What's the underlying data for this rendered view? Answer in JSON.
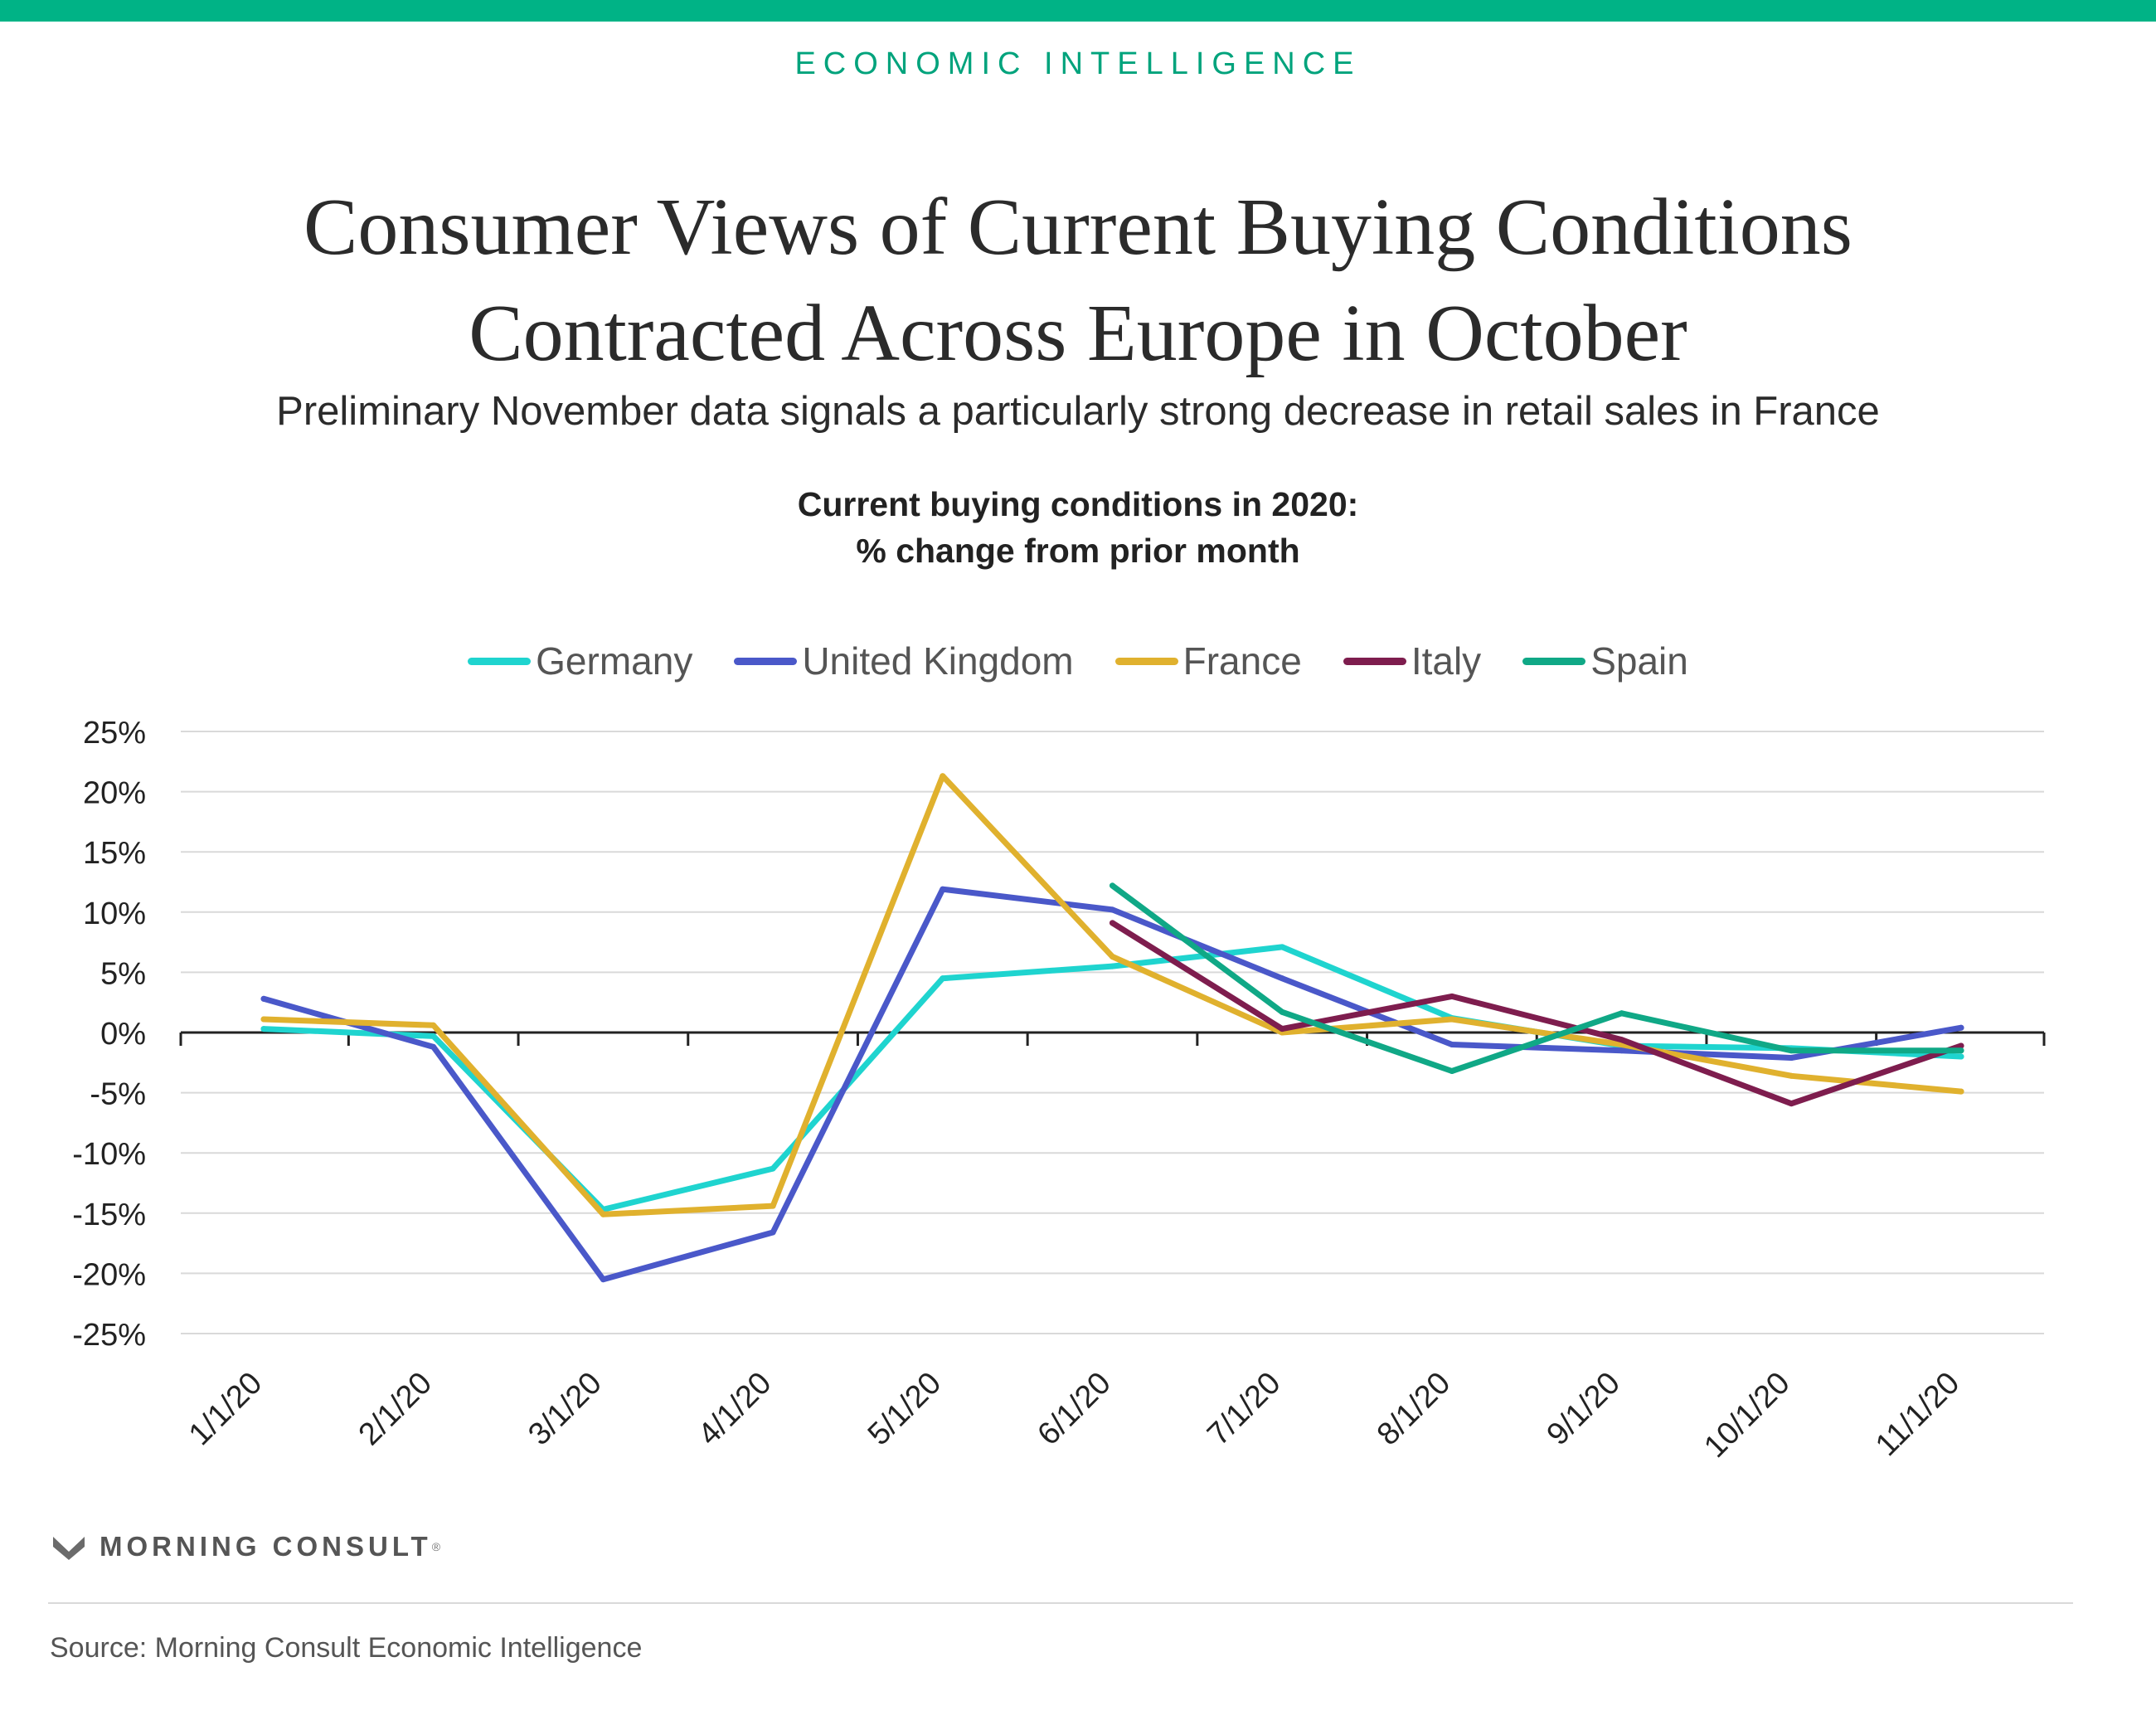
{
  "header": {
    "eyebrow": "ECONOMIC INTELLIGENCE",
    "title_line1": "Consumer Views of Current Buying Conditions",
    "title_line2": "Contracted Across Europe in October",
    "subtitle": "Preliminary November data signals a particularly strong decrease in retail sales in France"
  },
  "colors": {
    "brand_accent": "#00b386",
    "zero_line": "#222222",
    "grid": "#d9d9d9"
  },
  "footer": {
    "brand": "MORNING CONSULT",
    "brand_mark": "®",
    "logo_icon": "morning-consult-chevron-logo",
    "source": "Source: Morning Consult Economic Intelligence"
  },
  "chart_data": {
    "type": "line",
    "title_line1": "Current buying conditions in 2020:",
    "title_line2": "% change from prior month",
    "categories": [
      "1/1/20",
      "2/1/20",
      "3/1/20",
      "4/1/20",
      "5/1/20",
      "6/1/20",
      "7/1/20",
      "8/1/20",
      "9/1/20",
      "10/1/20",
      "11/1/20"
    ],
    "ylim": [
      -25,
      25
    ],
    "yticks": [
      25,
      20,
      15,
      10,
      5,
      0,
      -5,
      -10,
      -15,
      -20,
      -25
    ],
    "ytick_labels": [
      "25%",
      "20%",
      "15%",
      "10%",
      "5%",
      "0%",
      "-5%",
      "-10%",
      "-15%",
      "-20%",
      "-25%"
    ],
    "grid": true,
    "legend_position": "top-center",
    "series": [
      {
        "name": "Germany",
        "color": "#1fd4cf",
        "values": [
          0.3,
          -0.3,
          -14.7,
          -11.3,
          4.5,
          5.5,
          7.1,
          1.2,
          -1.1,
          -1.3,
          -2.0
        ]
      },
      {
        "name": "United Kingdom",
        "color": "#4a58c9",
        "values": [
          2.8,
          -1.2,
          -20.5,
          -16.6,
          11.9,
          10.2,
          4.5,
          -1.0,
          -1.5,
          -2.1,
          0.4
        ]
      },
      {
        "name": "France",
        "color": "#e0b12e",
        "values": [
          1.1,
          0.6,
          -15.1,
          -14.4,
          21.3,
          6.3,
          0.0,
          1.1,
          -1.0,
          -3.6,
          -4.9
        ]
      },
      {
        "name": "Italy",
        "color": "#7e1d4e",
        "values": [
          null,
          null,
          null,
          null,
          null,
          9.1,
          0.3,
          3.0,
          -0.6,
          -5.9,
          -1.1
        ]
      },
      {
        "name": "Spain",
        "color": "#10a886",
        "values": [
          null,
          null,
          null,
          null,
          null,
          12.2,
          1.7,
          -3.2,
          1.6,
          -1.5,
          -1.5
        ]
      }
    ]
  }
}
